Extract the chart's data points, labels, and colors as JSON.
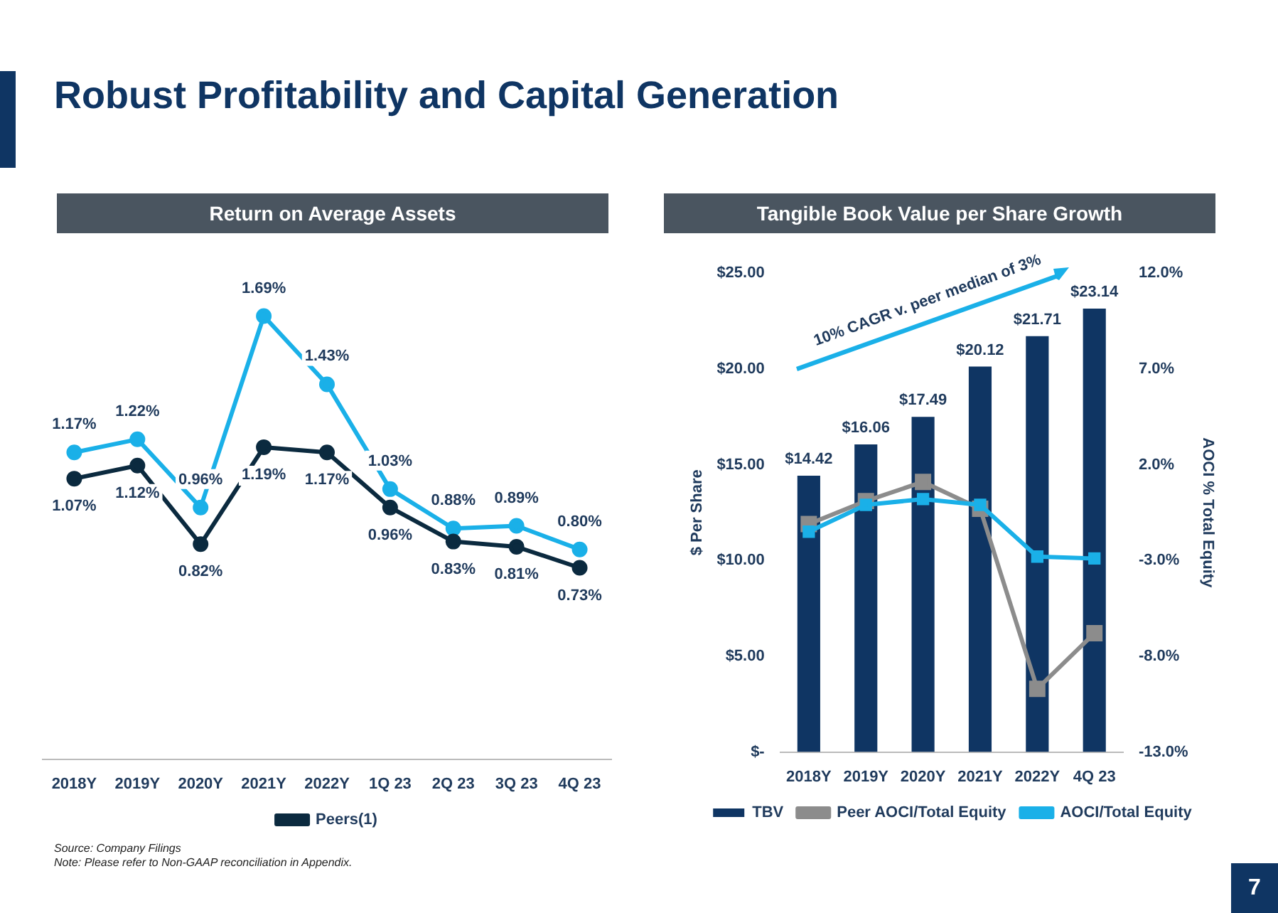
{
  "chart_data": [
    {
      "type": "other",
      "title": "Robust Profitability and Capital Generation",
      "annotations": [
        "Source: Company Filings",
        "Note: Please refer to Non-GAAP reconciliation in Appendix.",
        "7"
      ]
    },
    {
      "type": "line",
      "title": "Return on Average Assets",
      "categories": [
        "2018Y",
        "2019Y",
        "2020Y",
        "2021Y",
        "2022Y",
        "1Q 23",
        "2Q 23",
        "3Q 23",
        "4Q 23"
      ],
      "series": [
        {
          "color": "#1ab0e8",
          "values": [
            1.17,
            1.22,
            0.96,
            1.69,
            1.43,
            1.03,
            0.88,
            0.89,
            0.8
          ],
          "value_labels": [
            "1.17%",
            "1.22%",
            "0.96%",
            "1.69%",
            "1.43%",
            "1.03%",
            "0.88%",
            "0.89%",
            "0.80%"
          ]
        },
        {
          "name": "Peers(1)",
          "color": "#0b2a3f",
          "values": [
            1.07,
            1.12,
            0.82,
            1.19,
            1.17,
            0.96,
            0.83,
            0.81,
            0.73
          ],
          "value_labels": [
            "1.07%",
            "1.12%",
            "0.82%",
            "1.19%",
            "1.17%",
            "0.96%",
            "0.83%",
            "0.81%",
            "0.73%"
          ]
        }
      ],
      "marker": "circle",
      "grid": false,
      "legend": "bottom",
      "tick_labels": "x"
    },
    {
      "type": "bar",
      "title": "Tangible Book Value per Share Growth",
      "categories": [
        "2018Y",
        "2019Y",
        "2020Y",
        "2021Y",
        "2022Y",
        "4Q 23"
      ],
      "series": [
        {
          "name": "TBV",
          "type": "bar",
          "color": "#0f3563",
          "values": [
            14.42,
            16.06,
            17.49,
            20.12,
            21.71,
            23.14
          ],
          "value_labels": [
            "$14.42",
            "$16.06",
            "$17.49",
            "$20.12",
            "$21.71",
            "$23.14"
          ]
        },
        {
          "name": "Peer AOCI/Total Equity",
          "type": "line",
          "axis": "y2",
          "color": "#8c8c8c",
          "values": [
            -1.1,
            0.1,
            1.1,
            -0.3,
            -9.7,
            -6.8
          ]
        },
        {
          "name": "AOCI/Total Equity",
          "type": "line",
          "axis": "y2",
          "color": "#1ab0e8",
          "values": [
            -1.5,
            -0.1,
            0.2,
            -0.1,
            -2.8,
            -2.9
          ]
        }
      ],
      "ylabel": "$ Per Share",
      "y2label": "AOCI % Total Equity",
      "ylim": [
        0,
        25
      ],
      "yticks": [
        {
          "value": 0,
          "label": "$-"
        },
        {
          "value": 5,
          "label": "$5.00"
        },
        {
          "value": 10,
          "label": "$10.00"
        },
        {
          "value": 15,
          "label": "$15.00"
        },
        {
          "value": 20,
          "label": "$20.00"
        },
        {
          "value": 25,
          "label": "$25.00"
        }
      ],
      "y2lim": [
        -13,
        12
      ],
      "y2ticks": [
        {
          "value": -13,
          "label": "-13.0%"
        },
        {
          "value": -8,
          "label": "-8.0%"
        },
        {
          "value": -3,
          "label": "-3.0%"
        },
        {
          "value": 2,
          "label": "2.0%"
        },
        {
          "value": 7,
          "label": "7.0%"
        },
        {
          "value": 12,
          "label": "12.0%"
        }
      ],
      "annotations": [
        "10% CAGR v. peer median of 3%"
      ],
      "marker": "square",
      "grid": false,
      "legend": "bottom"
    }
  ]
}
